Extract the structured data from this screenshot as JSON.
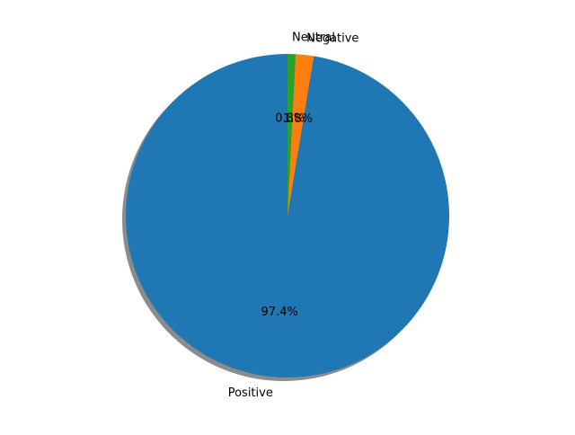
{
  "chart_data": {
    "type": "pie",
    "title": "",
    "slices": [
      {
        "label": "Positive",
        "value": 97.4,
        "pct_label": "97.4%",
        "color": "#1f77b4"
      },
      {
        "label": "Negative",
        "value": 1.8,
        "pct_label": "1.8%",
        "color": "#ff7f0e"
      },
      {
        "label": "Neutral",
        "value": 0.8,
        "pct_label": "0.8%",
        "color": "#2ca02c"
      }
    ],
    "start_angle_deg": 90,
    "direction": "counterclockwise",
    "shadow": true,
    "shadow_color": "#7f7f7f",
    "legend": false,
    "grid": false
  }
}
